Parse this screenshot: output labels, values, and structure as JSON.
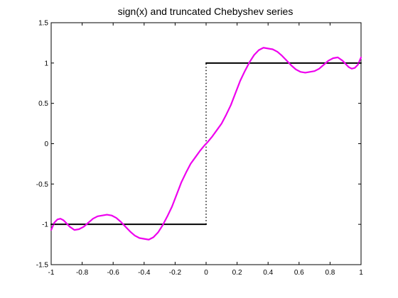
{
  "chart_data": {
    "type": "line",
    "title": "sign(x) and truncated Chebyshev series",
    "xlabel": "",
    "ylabel": "",
    "xlim": [
      -1,
      1
    ],
    "ylim": [
      -1.5,
      1.5
    ],
    "grid": false,
    "legend": "none",
    "x_ticks": [
      -1,
      -0.8,
      -0.6,
      -0.4,
      -0.2,
      0,
      0.2,
      0.4,
      0.6,
      0.8,
      1
    ],
    "x_tick_labels": [
      "-1",
      "-0.8",
      "-0.6",
      "-0.4",
      "-0.2",
      "0",
      "0.2",
      "0.4",
      "0.6",
      "0.8",
      "1"
    ],
    "y_ticks": [
      -1.5,
      -1,
      -0.5,
      0,
      0.5,
      1,
      1.5
    ],
    "y_tick_labels": [
      "-1.5",
      "-1",
      "-0.5",
      "0",
      "0.5",
      "1",
      "1.5"
    ],
    "series": [
      {
        "color": "#000000",
        "style": "solid",
        "x": [
          -1,
          0
        ],
        "y": [
          -1,
          -1
        ]
      },
      {
        "color": "#000000",
        "style": "dotted",
        "x": [
          0,
          0
        ],
        "y": [
          -1,
          1
        ]
      },
      {
        "color": "#000000",
        "style": "solid",
        "x": [
          0,
          1
        ],
        "y": [
          1,
          1
        ]
      },
      {
        "color": "#ee00ee",
        "style": "solid",
        "x": [
          -1,
          -0.98,
          -0.96,
          -0.94,
          -0.92,
          -0.9,
          -0.88,
          -0.85,
          -0.82,
          -0.79,
          -0.76,
          -0.73,
          -0.7,
          -0.67,
          -0.64,
          -0.61,
          -0.58,
          -0.55,
          -0.52,
          -0.49,
          -0.46,
          -0.43,
          -0.4,
          -0.37,
          -0.34,
          -0.31,
          -0.28,
          -0.25,
          -0.22,
          -0.19,
          -0.16,
          -0.13,
          -0.1,
          -0.07,
          -0.04,
          -0.01,
          0,
          0.01,
          0.04,
          0.07,
          0.1,
          0.13,
          0.16,
          0.19,
          0.22,
          0.25,
          0.28,
          0.31,
          0.34,
          0.37,
          0.4,
          0.43,
          0.46,
          0.49,
          0.52,
          0.55,
          0.58,
          0.61,
          0.64,
          0.67,
          0.7,
          0.73,
          0.76,
          0.79,
          0.82,
          0.85,
          0.88,
          0.9,
          0.92,
          0.94,
          0.96,
          0.98,
          1
        ],
        "y": [
          -1.07,
          -0.98,
          -0.94,
          -0.93,
          -0.95,
          -0.99,
          -1.03,
          -1.07,
          -1.06,
          -1.03,
          -0.98,
          -0.93,
          -0.9,
          -0.89,
          -0.88,
          -0.89,
          -0.92,
          -0.97,
          -1.03,
          -1.09,
          -1.14,
          -1.17,
          -1.18,
          -1.19,
          -1.16,
          -1.1,
          -1.01,
          -0.9,
          -0.78,
          -0.63,
          -0.48,
          -0.36,
          -0.25,
          -0.17,
          -0.09,
          -0.02,
          0,
          0.02,
          0.09,
          0.17,
          0.25,
          0.36,
          0.48,
          0.63,
          0.78,
          0.9,
          1.01,
          1.1,
          1.16,
          1.19,
          1.18,
          1.17,
          1.14,
          1.09,
          1.03,
          0.97,
          0.92,
          0.89,
          0.88,
          0.89,
          0.9,
          0.93,
          0.98,
          1.03,
          1.06,
          1.07,
          1.03,
          0.99,
          0.95,
          0.93,
          0.94,
          0.98,
          1.07
        ]
      }
    ]
  }
}
